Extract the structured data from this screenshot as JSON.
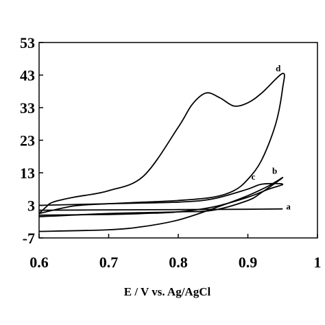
{
  "chart_data": {
    "type": "line",
    "xlabel": "E / V vs. Ag/AgCl",
    "ylabel": "",
    "xlim": [
      0.6,
      1.0
    ],
    "ylim": [
      -7,
      53
    ],
    "xticks": [
      "0.6",
      "0.7",
      "0.8",
      "0.9",
      "1"
    ],
    "yticks": [
      "53",
      "43",
      "33",
      "23",
      "13",
      "3",
      "-7"
    ],
    "xtick_values": [
      0.6,
      0.7,
      0.8,
      0.9,
      1.0
    ],
    "ytick_values": [
      53,
      43,
      33,
      23,
      13,
      3,
      -7
    ],
    "grid": false,
    "series": [
      {
        "name": "a",
        "label_at": [
          0.955,
          1.7
        ],
        "x": [
          0.6,
          0.7,
          0.8,
          0.9,
          0.95,
          0.9,
          0.8,
          0.7,
          0.6
        ],
        "y": [
          1.5,
          1.6,
          1.7,
          1.8,
          1.9,
          1.8,
          1.7,
          1.6,
          1.5
        ]
      },
      {
        "name": "b",
        "label_at": [
          0.935,
          12.7
        ],
        "x": [
          0.6,
          0.7,
          0.75,
          0.8,
          0.85,
          0.9,
          0.93,
          0.95,
          0.92,
          0.9,
          0.85,
          0.8,
          0.7,
          0.6
        ],
        "y": [
          -5.0,
          -4.5,
          -3.5,
          -1.5,
          2.0,
          6.0,
          9.0,
          11.5,
          7.0,
          4.5,
          1.5,
          1.0,
          0.5,
          -0.5
        ]
      },
      {
        "name": "c",
        "label_at": [
          0.905,
          10.9
        ],
        "x": [
          0.6,
          0.7,
          0.75,
          0.8,
          0.85,
          0.9,
          0.93,
          0.95,
          0.92,
          0.9,
          0.85,
          0.8,
          0.7,
          0.6
        ],
        "y": [
          0.0,
          0.2,
          0.5,
          1.0,
          2.5,
          5.5,
          8.0,
          9.5,
          9.5,
          8.0,
          5.0,
          4.0,
          3.5,
          3.0
        ]
      },
      {
        "name": "d",
        "label_at": [
          0.94,
          44.2
        ],
        "x": [
          0.6,
          0.61,
          0.62,
          0.65,
          0.7,
          0.75,
          0.8,
          0.82,
          0.84,
          0.86,
          0.88,
          0.9,
          0.92,
          0.95,
          0.95,
          0.94,
          0.92,
          0.9,
          0.88,
          0.85,
          0.8,
          0.75,
          0.7,
          0.65,
          0.6
        ],
        "y": [
          0.5,
          2.5,
          4.0,
          5.5,
          7.5,
          12.0,
          27.0,
          34.0,
          37.5,
          36.0,
          33.5,
          34.5,
          37.5,
          43.5,
          39.0,
          28.0,
          17.0,
          11.0,
          7.5,
          5.5,
          4.5,
          4.0,
          3.5,
          2.8,
          0.5
        ]
      }
    ]
  }
}
